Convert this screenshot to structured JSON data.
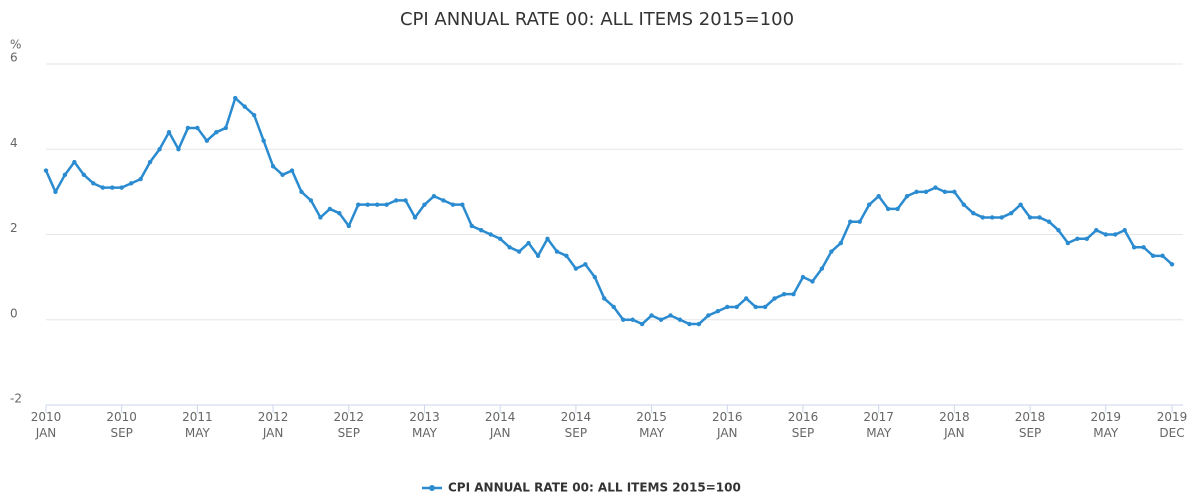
{
  "chart_data": {
    "type": "line",
    "title": "CPI ANNUAL RATE 00: ALL ITEMS 2015=100",
    "y_label": "%",
    "categories": [
      "2010\nJAN",
      null,
      null,
      null,
      null,
      null,
      null,
      null,
      "2010\nSEP",
      null,
      null,
      null,
      null,
      null,
      null,
      null,
      "2011\nMAY",
      null,
      null,
      null,
      null,
      null,
      null,
      null,
      "2012\nJAN",
      null,
      null,
      null,
      null,
      null,
      null,
      null,
      "2012\nSEP",
      null,
      null,
      null,
      null,
      null,
      null,
      null,
      "2013\nMAY",
      null,
      null,
      null,
      null,
      null,
      null,
      null,
      "2014\nJAN",
      null,
      null,
      null,
      null,
      null,
      null,
      null,
      "2014\nSEP",
      null,
      null,
      null,
      null,
      null,
      null,
      null,
      "2015\nMAY",
      null,
      null,
      null,
      null,
      null,
      null,
      null,
      "2016\nJAN",
      null,
      null,
      null,
      null,
      null,
      null,
      null,
      "2016\nSEP",
      null,
      null,
      null,
      null,
      null,
      null,
      null,
      "2017\nMAY",
      null,
      null,
      null,
      null,
      null,
      null,
      null,
      "2018\nJAN",
      null,
      null,
      null,
      null,
      null,
      null,
      null,
      "2018\nSEP",
      null,
      null,
      null,
      null,
      null,
      null,
      null,
      "2019\nMAY",
      null,
      null,
      null,
      null,
      null,
      null,
      "2019\nDEC"
    ],
    "series": [
      {
        "name": "CPI ANNUAL RATE 00: ALL ITEMS 2015=100",
        "color": "#2a8bd0",
        "values": [
          3.5,
          3.0,
          3.4,
          3.7,
          3.4,
          3.2,
          3.1,
          3.1,
          3.1,
          3.2,
          3.3,
          3.7,
          4.0,
          4.4,
          4.0,
          4.5,
          4.5,
          4.2,
          4.4,
          4.5,
          5.2,
          5.0,
          4.8,
          4.2,
          3.6,
          3.4,
          3.5,
          3.0,
          2.8,
          2.4,
          2.6,
          2.5,
          2.2,
          2.7,
          2.7,
          2.7,
          2.7,
          2.8,
          2.8,
          2.4,
          2.7,
          2.9,
          2.8,
          2.7,
          2.7,
          2.2,
          2.1,
          2.0,
          1.9,
          1.7,
          1.6,
          1.8,
          1.5,
          1.9,
          1.6,
          1.5,
          1.2,
          1.3,
          1.0,
          0.5,
          0.3,
          0.0,
          0.0,
          -0.1,
          0.1,
          0.0,
          0.1,
          0.0,
          -0.1,
          -0.1,
          0.1,
          0.2,
          0.3,
          0.3,
          0.5,
          0.3,
          0.3,
          0.5,
          0.6,
          0.6,
          1.0,
          0.9,
          1.2,
          1.6,
          1.8,
          2.3,
          2.3,
          2.7,
          2.9,
          2.6,
          2.6,
          2.9,
          3.0,
          3.0,
          3.1,
          3.0,
          3.0,
          2.7,
          2.5,
          2.4,
          2.4,
          2.4,
          2.5,
          2.7,
          2.4,
          2.4,
          2.3,
          2.1,
          1.8,
          1.9,
          1.9,
          2.1,
          2.0,
          2.0,
          2.1,
          1.7,
          1.7,
          1.5,
          1.5,
          1.3
        ]
      }
    ],
    "ylim": [
      -2,
      6
    ],
    "yticks": [
      -2,
      0,
      2,
      4,
      6
    ],
    "grid": true
  }
}
